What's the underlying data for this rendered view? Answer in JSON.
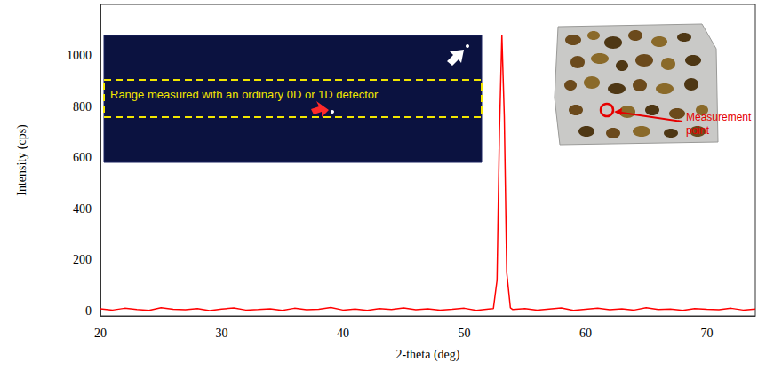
{
  "chart_data": {
    "type": "line",
    "xlabel": "2-theta (deg)",
    "ylabel": "Intensity (cps)",
    "color": "#ff0000",
    "x": [
      20,
      21,
      22,
      23,
      24,
      25,
      26,
      27,
      28,
      29,
      30,
      31,
      32,
      33,
      34,
      35,
      36,
      37,
      38,
      39,
      40,
      41,
      42,
      43,
      44,
      45,
      46,
      47,
      48,
      49,
      50,
      51,
      52,
      52.4,
      52.7,
      52.9,
      53.1,
      53.3,
      53.5,
      53.8,
      54,
      55,
      56,
      57,
      58,
      59,
      60,
      61,
      62,
      63,
      64,
      65,
      66,
      67,
      68,
      69,
      70,
      71,
      72,
      73,
      74
    ],
    "values": [
      8,
      3,
      10,
      5,
      2,
      12,
      6,
      4,
      9,
      1,
      7,
      11,
      3,
      5,
      8,
      2,
      10,
      4,
      6,
      13,
      3,
      7,
      2,
      9,
      5,
      11,
      4,
      8,
      3,
      6,
      10,
      2,
      7,
      9,
      120,
      700,
      1080,
      760,
      150,
      12,
      5,
      9,
      3,
      7,
      11,
      2,
      6,
      10,
      4,
      8,
      3,
      12,
      5,
      7,
      2,
      9,
      6,
      4,
      10,
      3,
      7
    ],
    "xlim": [
      20,
      74
    ],
    "xticks": [
      20,
      30,
      40,
      50,
      60,
      70
    ],
    "ylim": [
      -20,
      1200
    ],
    "yticks": [
      0,
      200,
      400,
      600,
      800,
      1000
    ],
    "grid": false,
    "annotations": [
      "Range measured with an ordinary 0D or 1D detector",
      "Measurement point"
    ]
  }
}
